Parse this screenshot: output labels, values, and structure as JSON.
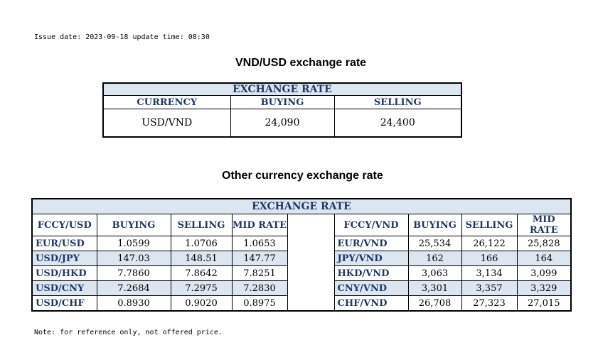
{
  "issue_line": "Issue date: 2023-09-18 update time: 08:30",
  "title_vnd_usd": "VND/USD exchange rate",
  "main_table": {
    "banner": "EXCHANGE RATE",
    "headers": [
      "CURRENCY",
      "BUYING",
      "SELLING"
    ],
    "row": [
      "USD/VND",
      "24,090",
      "24,400"
    ]
  },
  "title_other": "Other currency exchange rate",
  "other_table": {
    "banner": "EXCHANGE  RATE",
    "left_headers": [
      "FCCY/USD",
      "BUYING",
      "SELLING",
      "MID RATE"
    ],
    "right_headers": [
      "FCCY/VND",
      "BUYING",
      "SELLING",
      "MID RATE"
    ],
    "rows": [
      {
        "l": [
          "EUR/USD",
          "1.0599",
          "1.0706",
          "1.0653"
        ],
        "r": [
          "EUR/VND",
          "25,534",
          "26,122",
          "25,828"
        ]
      },
      {
        "l": [
          "USD/JPY",
          "147.03",
          "148.51",
          "147.77"
        ],
        "r": [
          "JPY/VND",
          "162",
          "166",
          "164"
        ]
      },
      {
        "l": [
          "USD/HKD",
          "7.7860",
          "7.8642",
          "7.8251"
        ],
        "r": [
          "HKD/VND",
          "3,063",
          "3,134",
          "3,099"
        ]
      },
      {
        "l": [
          "USD/CNY",
          "7.2684",
          "7.2975",
          "7.2830"
        ],
        "r": [
          "CNY/VND",
          "3,301",
          "3,357",
          "3,329"
        ]
      },
      {
        "l": [
          "USD/CHF",
          "0.8930",
          "0.9020",
          "0.8975"
        ],
        "r": [
          "CHF/VND",
          "26,708",
          "27,323",
          "27,015"
        ]
      }
    ]
  },
  "note": "Note: for reference only, not offered price.",
  "colors": {
    "header_text": "#1f3864",
    "shade": "#dce6f1"
  }
}
